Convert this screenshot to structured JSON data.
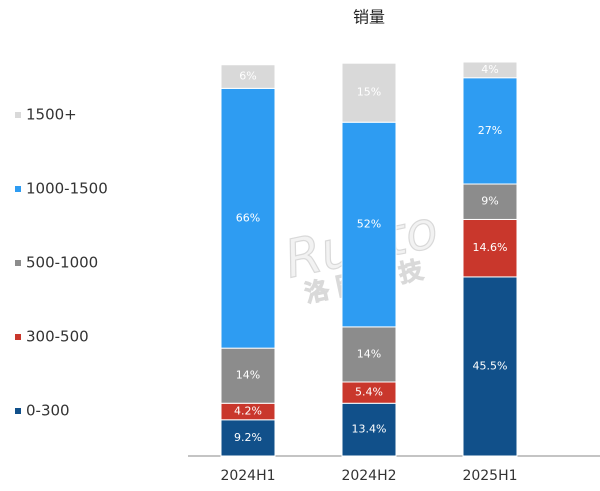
{
  "chart_data": {
    "type": "stacked_bar",
    "title": "销量",
    "categories": [
      "2024H1",
      "2024H2",
      "2025H1"
    ],
    "series": [
      {
        "name": "0-300",
        "color": "#11508a",
        "values": [
          9.2,
          13.4,
          45.5
        ],
        "value_labels": [
          "9.2%",
          "13.4%",
          "45.5%"
        ]
      },
      {
        "name": "300-500",
        "color": "#c9372c",
        "values": [
          4.2,
          5.4,
          14.6
        ],
        "value_labels": [
          "4.2%",
          "5.4%",
          "14.6%"
        ]
      },
      {
        "name": "500-1000",
        "color": "#8c8c8c",
        "values": [
          14,
          14,
          9
        ],
        "value_labels": [
          "14%",
          "14%",
          "9%"
        ]
      },
      {
        "name": "1000-1500",
        "color": "#2e9cf2",
        "values": [
          66,
          52,
          27
        ],
        "value_labels": [
          "66%",
          "52%",
          "27%"
        ]
      },
      {
        "name": "1500+",
        "color": "#d9d9d9",
        "values": [
          6,
          15,
          4
        ],
        "value_labels": [
          "6%",
          "15%",
          "4%"
        ]
      }
    ],
    "legend": "left",
    "watermark": {
      "brand": "Runto",
      "name": "洛图科技"
    }
  }
}
